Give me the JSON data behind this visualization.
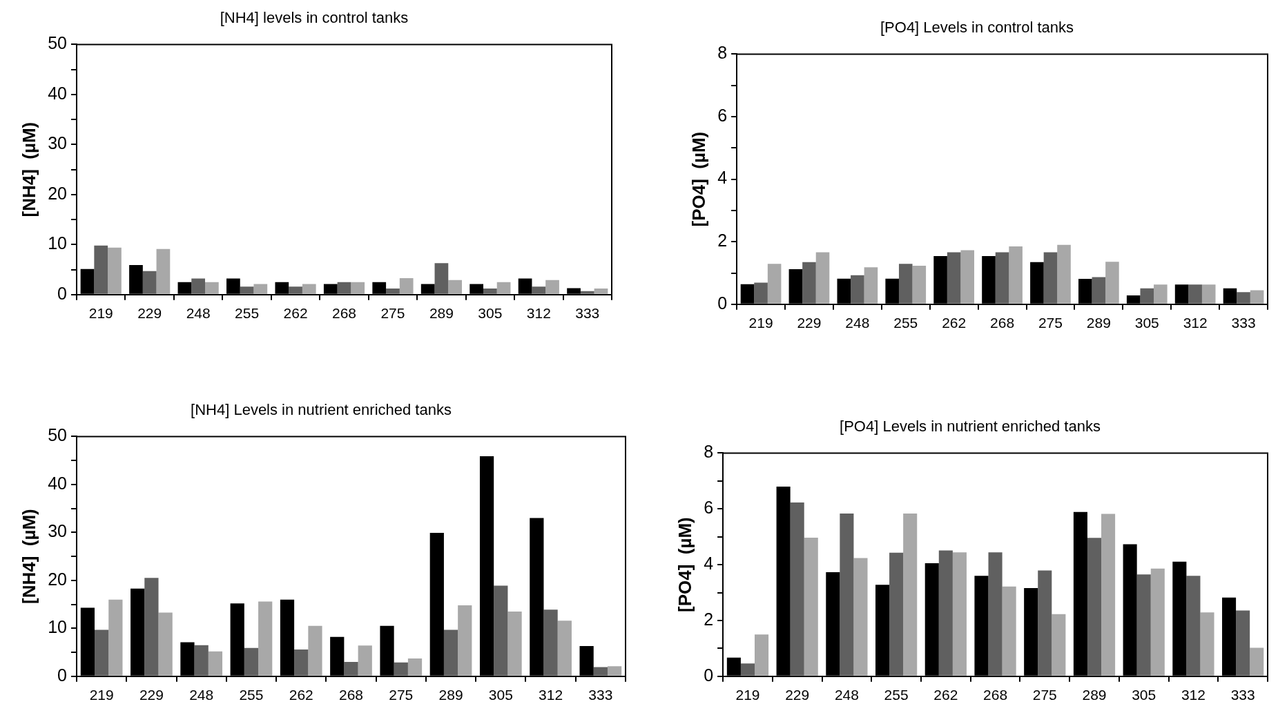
{
  "chart_data": [
    {
      "type": "bar",
      "title": "[NH4] levels in control tanks",
      "ylabel": "[NH4]  (µM)",
      "categories": [
        "219",
        "229",
        "248",
        "255",
        "262",
        "268",
        "275",
        "289",
        "305",
        "312",
        "333"
      ],
      "ylim": [
        0,
        50
      ],
      "yticks": [
        0,
        {
          "value": 5,
          "label": null
        },
        10,
        {
          "value": 15,
          "label": null
        },
        20,
        {
          "value": 25,
          "label": null
        },
        30,
        {
          "value": 35,
          "label": null
        },
        40,
        {
          "value": 45,
          "label": null
        },
        50
      ],
      "grid": false,
      "series": [
        {
          "color": "#000000",
          "values": [
            5.1,
            5.9,
            2.5,
            3.2,
            2.5,
            2.1,
            2.5,
            2.1,
            2.1,
            3.2,
            1.3
          ]
        },
        {
          "color": "#606060",
          "values": [
            9.8,
            4.7,
            3.2,
            1.6,
            1.6,
            2.5,
            1.2,
            6.3,
            1.2,
            1.6,
            0.7
          ]
        },
        {
          "color": "#a8a8a8",
          "values": [
            9.4,
            9.1,
            2.5,
            2.1,
            2.1,
            2.5,
            3.3,
            2.9,
            2.5,
            2.9,
            1.2
          ]
        }
      ]
    },
    {
      "type": "bar",
      "title": "[PO4] Levels in control tanks",
      "ylabel": "[PO4]  (µM)",
      "categories": [
        "219",
        "229",
        "248",
        "255",
        "262",
        "268",
        "275",
        "289",
        "305",
        "312",
        "333"
      ],
      "ylim": [
        0,
        8
      ],
      "yticks": [
        0,
        {
          "value": 1,
          "label": null
        },
        2,
        {
          "value": 3,
          "label": null
        },
        4,
        {
          "value": 5,
          "label": null
        },
        6,
        {
          "value": 7,
          "label": null
        },
        8
      ],
      "grid": false,
      "series": [
        {
          "color": "#000000",
          "values": [
            0.64,
            1.12,
            0.82,
            0.82,
            1.54,
            1.54,
            1.35,
            0.81,
            0.28,
            0.63,
            0.51
          ]
        },
        {
          "color": "#606060",
          "values": [
            0.69,
            1.35,
            0.93,
            1.29,
            1.66,
            1.66,
            1.66,
            0.87,
            0.51,
            0.63,
            0.39
          ]
        },
        {
          "color": "#a8a8a8",
          "values": [
            1.29,
            1.66,
            1.18,
            1.23,
            1.73,
            1.85,
            1.9,
            1.36,
            0.63,
            0.63,
            0.45
          ]
        }
      ]
    },
    {
      "type": "bar",
      "title": "[NH4] Levels in nutrient enriched tanks",
      "ylabel": "[NH4]  (µM)",
      "categories": [
        "219",
        "229",
        "248",
        "255",
        "262",
        "268",
        "275",
        "289",
        "305",
        "312",
        "333"
      ],
      "ylim": [
        0,
        50
      ],
      "yticks": [
        0,
        {
          "value": 5,
          "label": null
        },
        10,
        {
          "value": 15,
          "label": null
        },
        20,
        {
          "value": 25,
          "label": null
        },
        30,
        {
          "value": 35,
          "label": null
        },
        40,
        {
          "value": 45,
          "label": null
        },
        50
      ],
      "grid": false,
      "series": [
        {
          "color": "#000000",
          "values": [
            14.3,
            18.3,
            7.1,
            15.2,
            16.0,
            8.2,
            10.5,
            29.9,
            45.9,
            33.0,
            6.3
          ]
        },
        {
          "color": "#606060",
          "values": [
            9.7,
            20.5,
            6.5,
            5.9,
            5.6,
            3.0,
            2.9,
            9.7,
            18.9,
            13.9,
            1.9
          ]
        },
        {
          "color": "#a8a8a8",
          "values": [
            16.0,
            13.3,
            5.2,
            15.6,
            10.5,
            6.4,
            3.7,
            14.8,
            13.5,
            11.6,
            2.1
          ]
        }
      ]
    },
    {
      "type": "bar",
      "title": "[PO4] Levels in nutrient enriched tanks",
      "ylabel": "[PO4]  (µM)",
      "categories": [
        "219",
        "229",
        "248",
        "255",
        "262",
        "268",
        "275",
        "289",
        "305",
        "312",
        "333"
      ],
      "ylim": [
        0,
        8
      ],
      "yticks": [
        0,
        {
          "value": 1,
          "label": null
        },
        2,
        {
          "value": 3,
          "label": null
        },
        4,
        {
          "value": 5,
          "label": null
        },
        6,
        {
          "value": 7,
          "label": null
        },
        8
      ],
      "grid": false,
      "series": [
        {
          "color": "#000000",
          "values": [
            0.67,
            6.8,
            3.73,
            3.28,
            4.05,
            3.6,
            3.16,
            5.89,
            4.73,
            4.11,
            2.82
          ]
        },
        {
          "color": "#606060",
          "values": [
            0.46,
            6.23,
            5.83,
            4.43,
            4.51,
            4.44,
            3.79,
            4.96,
            3.65,
            3.6,
            2.36
          ]
        },
        {
          "color": "#a8a8a8",
          "values": [
            1.5,
            4.97,
            4.24,
            5.83,
            4.44,
            3.22,
            2.23,
            5.82,
            3.86,
            2.29,
            1.02
          ]
        }
      ]
    }
  ]
}
